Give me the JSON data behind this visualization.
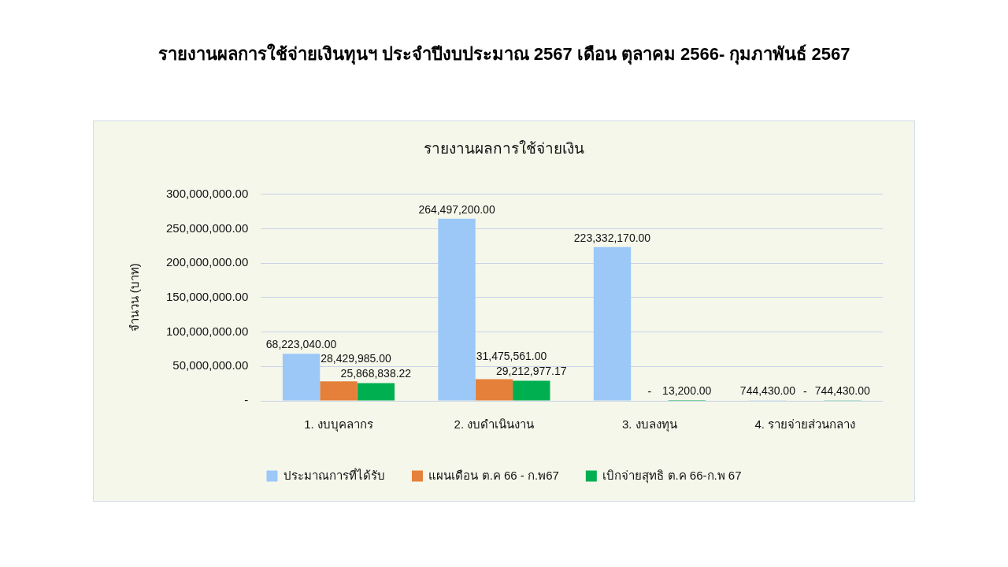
{
  "chart_data": {
    "type": "bar",
    "title": "รายงานผลการใช้จ่ายเงินทุนฯ ประจำปีงบประมาณ 2567 เดือน ตุลาคม 2566- กุมภาพันธ์ 2567",
    "subtitle": "รายงานผลการใช้จ่ายเงิน",
    "ylabel": "จำนวน (บาท)",
    "categories": [
      "1. งบบุคลากร",
      "2. งบดำเนินงาน",
      "3. งบลงทุน",
      "4. รายจ่ายส่วนกลาง"
    ],
    "series": [
      {
        "name": "ประมาณการที่ได้รับ",
        "color": "#9cc8f8",
        "values": [
          68223040,
          264497200,
          223332170,
          744430
        ],
        "value_labels": [
          "68,223,040.00",
          "264,497,200.00",
          "223,332,170.00",
          "744,430.00"
        ]
      },
      {
        "name": "แผนเดือน ต.ค 66 - ก.พ67",
        "color": "#e5803a",
        "values": [
          28429985,
          31475561,
          0,
          0
        ],
        "value_labels": [
          "28,429,985.00",
          "31,475,561.00",
          "-",
          "-"
        ]
      },
      {
        "name": "เบิกจ่ายสุทธิ ต.ค 66-ก.พ 67",
        "color": "#00b050",
        "values": [
          25868838.22,
          29212977.17,
          13200,
          744430
        ],
        "value_labels": [
          "25,868,838.22",
          "29,212,977.17",
          "13,200.00",
          "744,430.00"
        ]
      }
    ],
    "ylim": [
      0,
      300000000
    ],
    "yticks": [
      {
        "value": 0,
        "label": "-"
      },
      {
        "value": 50000000,
        "label": "50,000,000.00"
      },
      {
        "value": 100000000,
        "label": "100,000,000.00"
      },
      {
        "value": 150000000,
        "label": "150,000,000.00"
      },
      {
        "value": 200000000,
        "label": "200,000,000.00"
      },
      {
        "value": 250000000,
        "label": "250,000,000.00"
      },
      {
        "value": 300000000,
        "label": "300,000,000.00"
      }
    ],
    "grid": "y",
    "legend": "bottom"
  }
}
